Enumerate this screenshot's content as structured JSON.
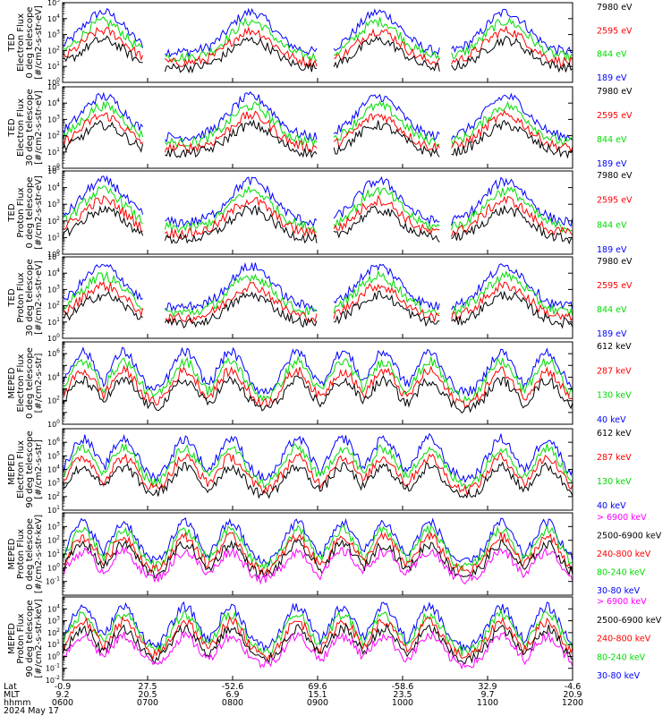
{
  "date_label": "2024 May 17",
  "row_labels": [
    "Lat",
    "MLT",
    "hhmm"
  ],
  "colors": {
    "black": "#000000",
    "red": "#ff0000",
    "green": "#00dd00",
    "blue": "#0000ff",
    "magenta": "#ff00ff"
  },
  "chart_data": [
    {
      "type": "line",
      "ylabel": [
        "TED",
        "Electron Flux",
        "0 deg telescope",
        "[#/cm2-s-str-eV]"
      ],
      "ylim": [
        1,
        100000
      ],
      "yscale": "log",
      "ytick_exponents": [
        0,
        1,
        2,
        3,
        4,
        5
      ],
      "channels": [
        {
          "label": "7980 eV",
          "color": "#000000"
        },
        {
          "label": "2595 eV",
          "color": "#ff0000"
        },
        {
          "label": "844 eV",
          "color": "#00dd00"
        },
        {
          "label": "189 eV",
          "color": "#0000ff"
        }
      ]
    },
    {
      "type": "line",
      "ylabel": [
        "TED",
        "Electron Flux",
        "30 deg telescope",
        "[#/cm2-s-str-eV]"
      ],
      "ylim": [
        1,
        100000
      ],
      "yscale": "log",
      "ytick_exponents": [
        0,
        1,
        2,
        3,
        4,
        5
      ],
      "channels": [
        {
          "label": "7980 eV",
          "color": "#000000"
        },
        {
          "label": "2595 eV",
          "color": "#ff0000"
        },
        {
          "label": "844 eV",
          "color": "#00dd00"
        },
        {
          "label": "189 eV",
          "color": "#0000ff"
        }
      ]
    },
    {
      "type": "line",
      "ylabel": [
        "TED",
        "Proton Flux",
        "0 deg telescope",
        "[#/cm2-s-str-eV]"
      ],
      "ylim": [
        1,
        100000
      ],
      "yscale": "log",
      "ytick_exponents": [
        0,
        1,
        2,
        3,
        4,
        5
      ],
      "channels": [
        {
          "label": "7980 eV",
          "color": "#000000"
        },
        {
          "label": "2595 eV",
          "color": "#ff0000"
        },
        {
          "label": "844 eV",
          "color": "#00dd00"
        },
        {
          "label": "189 eV",
          "color": "#0000ff"
        }
      ]
    },
    {
      "type": "line",
      "ylabel": [
        "TED",
        "Proton Flux",
        "30 deg telescope",
        "[#/cm2-s-str-eV]"
      ],
      "ylim": [
        1,
        100000
      ],
      "yscale": "log",
      "ytick_exponents": [
        0,
        1,
        2,
        3,
        4,
        5
      ],
      "channels": [
        {
          "label": "7980 eV",
          "color": "#000000"
        },
        {
          "label": "2595 eV",
          "color": "#ff0000"
        },
        {
          "label": "844 eV",
          "color": "#00dd00"
        },
        {
          "label": "189 eV",
          "color": "#0000ff"
        }
      ]
    },
    {
      "type": "line",
      "ylabel": [
        "MEPED",
        "Electron Flux",
        "0 deg telescope",
        "[#/cm2-s-str]"
      ],
      "ylim": [
        1,
        10000000
      ],
      "yscale": "log",
      "ytick_exponents": [
        0,
        2,
        4,
        6
      ],
      "channels": [
        {
          "label": "612 keV",
          "color": "#000000"
        },
        {
          "label": "287 keV",
          "color": "#ff0000"
        },
        {
          "label": "130 keV",
          "color": "#00dd00"
        },
        {
          "label": "40 keV",
          "color": "#0000ff"
        }
      ]
    },
    {
      "type": "line",
      "ylabel": [
        "MEPED",
        "Electron Flux",
        "90 deg telescope",
        "[#/cm2-s-str]"
      ],
      "ylim": [
        10,
        10000000
      ],
      "yscale": "log",
      "ytick_exponents": [
        1,
        2,
        3,
        4,
        5,
        6
      ],
      "channels": [
        {
          "label": "612 keV",
          "color": "#000000"
        },
        {
          "label": "287 keV",
          "color": "#ff0000"
        },
        {
          "label": "130 keV",
          "color": "#00dd00"
        },
        {
          "label": "40 keV",
          "color": "#0000ff"
        }
      ]
    },
    {
      "type": "line",
      "ylabel": [
        "MEPED",
        "Proton Flux",
        "0 deg telescope",
        "[#/cm2-s-str-keV]"
      ],
      "ylim": [
        0.01,
        10000
      ],
      "yscale": "log",
      "ytick_exponents": [
        -1,
        0,
        1,
        2,
        3
      ],
      "channels": [
        {
          "label": "> 6900 keV",
          "color": "#ff00ff"
        },
        {
          "label": "2500-6900 keV",
          "color": "#000000"
        },
        {
          "label": "240-800 keV",
          "color": "#ff0000"
        },
        {
          "label": "80-240 keV",
          "color": "#00dd00"
        },
        {
          "label": "30-80 keV",
          "color": "#0000ff"
        }
      ]
    },
    {
      "type": "line",
      "ylabel": [
        "MEPED",
        "Proton Flux",
        "90 deg telescope",
        "[#/cm2-s-str-keV]"
      ],
      "ylim": [
        0.01,
        100000
      ],
      "yscale": "log",
      "ytick_exponents": [
        -2,
        -1,
        0,
        1,
        2,
        3,
        4
      ],
      "channels": [
        {
          "label": "> 6900 keV",
          "color": "#ff00ff"
        },
        {
          "label": "2500-6900 keV",
          "color": "#000000"
        },
        {
          "label": "240-800 keV",
          "color": "#ff0000"
        },
        {
          "label": "80-240 keV",
          "color": "#00dd00"
        },
        {
          "label": "30-80 keV",
          "color": "#0000ff"
        }
      ]
    }
  ],
  "x_axis": {
    "ticks": [
      {
        "lat": "-0.9",
        "mlt": "9.2",
        "hhmm": "0600"
      },
      {
        "lat": "27.5",
        "mlt": "20.5",
        "hhmm": "0700"
      },
      {
        "lat": "-52.6",
        "mlt": "6.9",
        "hhmm": "0800"
      },
      {
        "lat": "69.6",
        "mlt": "15.1",
        "hhmm": "0900"
      },
      {
        "lat": "-58.6",
        "mlt": "23.5",
        "hhmm": "1000"
      },
      {
        "lat": "32.9",
        "mlt": "9.7",
        "hhmm": "1100"
      },
      {
        "lat": "-4.6",
        "mlt": "20.9",
        "hhmm": "1200"
      }
    ]
  }
}
